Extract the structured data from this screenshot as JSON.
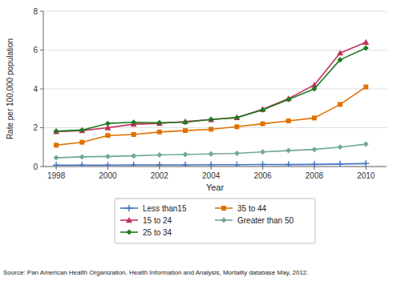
{
  "chart_data": {
    "type": "line",
    "xlabel": "Year",
    "ylabel": "Rate per 100,000 population",
    "source": "Source: Pan American Health Organization, Health Information and Analysis, Mortality database May, 2012.",
    "x": [
      1998,
      1999,
      2000,
      2001,
      2002,
      2003,
      2004,
      2005,
      2006,
      2007,
      2008,
      2009,
      2010
    ],
    "series": [
      {
        "name": "Less than15",
        "color": "#4472C4",
        "marker": "plus",
        "values": [
          0.07,
          0.07,
          0.07,
          0.08,
          0.08,
          0.08,
          0.09,
          0.09,
          0.1,
          0.1,
          0.11,
          0.13,
          0.15
        ]
      },
      {
        "name": "15 to 24",
        "color": "#C0305A",
        "marker": "triangle",
        "values": [
          1.8,
          1.85,
          2.0,
          2.18,
          2.22,
          2.32,
          2.42,
          2.52,
          2.95,
          3.5,
          4.2,
          5.85,
          6.4
        ]
      },
      {
        "name": "25 to 34",
        "color": "#1F7A1F",
        "marker": "diamond",
        "values": [
          1.82,
          1.88,
          2.22,
          2.28,
          2.26,
          2.28,
          2.42,
          2.52,
          2.92,
          3.45,
          4.0,
          5.5,
          6.1
        ]
      },
      {
        "name": "35 to 44",
        "color": "#E07000",
        "marker": "square",
        "values": [
          1.1,
          1.25,
          1.6,
          1.65,
          1.78,
          1.85,
          1.92,
          2.05,
          2.2,
          2.35,
          2.5,
          3.2,
          4.1
        ]
      },
      {
        "name": "Greater than 50",
        "color": "#70A89A",
        "marker": "diamond",
        "values": [
          0.45,
          0.5,
          0.52,
          0.55,
          0.6,
          0.62,
          0.65,
          0.68,
          0.75,
          0.82,
          0.88,
          1.0,
          1.15
        ]
      }
    ],
    "xlim": [
      1997.5,
      2010.8
    ],
    "xticks": [
      1998,
      2000,
      2002,
      2004,
      2006,
      2008,
      2010
    ],
    "ylim": [
      0,
      8
    ],
    "yticks": [
      0,
      2,
      4,
      6,
      8
    ],
    "grid": true,
    "legend": "bottom"
  }
}
